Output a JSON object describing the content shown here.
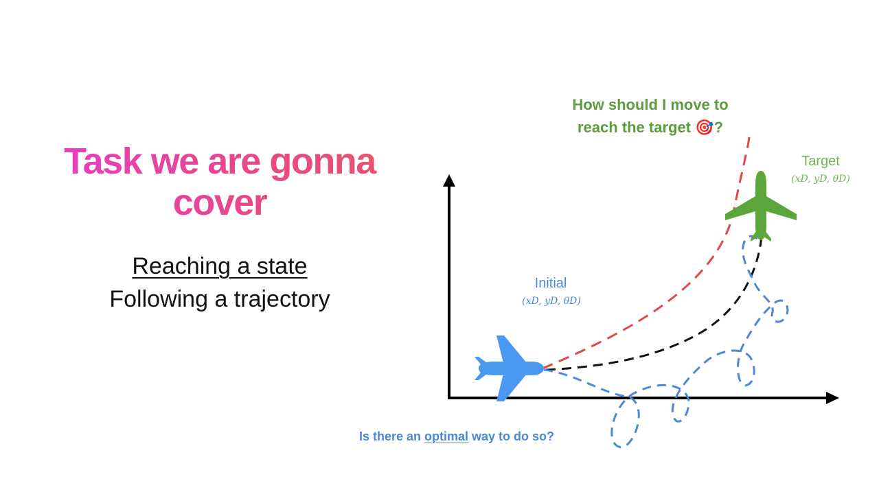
{
  "slide": {
    "title": "Task we are gonna cover",
    "items": [
      {
        "label": "Reaching a state",
        "underlined": true
      },
      {
        "label": "Following a trajectory",
        "underlined": false
      }
    ]
  },
  "diagram": {
    "question": {
      "line1": "How should I move to",
      "line2": "reach the target",
      "icon": "🎯",
      "icon_name": "target-icon",
      "end": "?"
    },
    "target": {
      "label": "Target",
      "coords": "(xD, yD, θD)",
      "color": "#72b454",
      "icon": "airplane-icon"
    },
    "initial": {
      "label": "Initial",
      "coords": "(xD, yD, θD)",
      "color": "#4b88da",
      "icon": "airplane-icon"
    },
    "bottom_question": {
      "before": "Is there an",
      "underlined": "optimal",
      "after": "way to do so?"
    },
    "colors": {
      "axes": "#000000",
      "red_path": "#e0474c",
      "black_path": "#111111",
      "blue_path": "#4b88da"
    }
  }
}
